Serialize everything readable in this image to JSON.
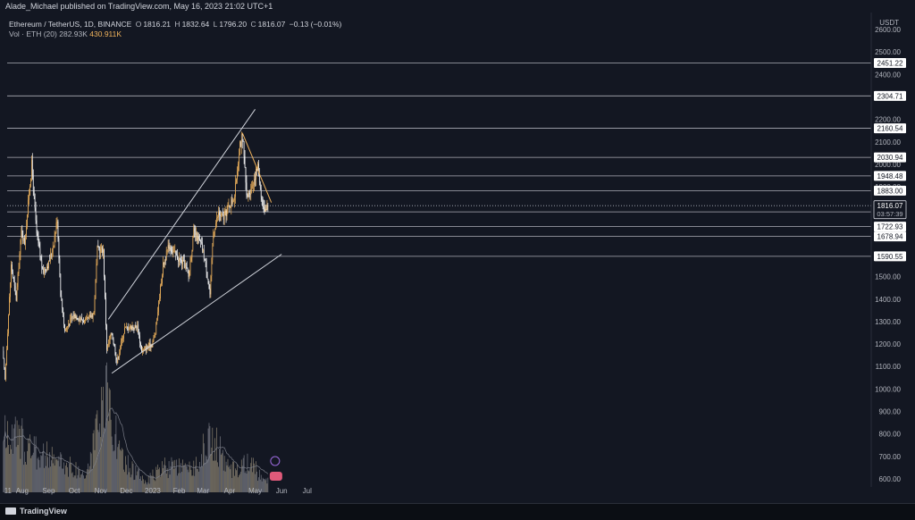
{
  "header": {
    "published": "Alade_Michael published on TradingView.com, May 16, 2023 21:02 UTC+1",
    "currency": "USDT"
  },
  "legend": {
    "symbol": "Ethereum / TetherUS, 1D, BINANCE",
    "open_label": "O",
    "open": "1816.21",
    "high_label": "H",
    "high": "1832.64",
    "low_label": "L",
    "low": "1796.20",
    "close_label": "C",
    "close": "1816.07",
    "change": "−0.13 (−0.01%)",
    "volume_label": "Vol · ETH (20)",
    "volume_ma": "282.93K",
    "volume": "430.911K"
  },
  "footer": {
    "brand": "TradingView"
  },
  "colors": {
    "background": "#131722",
    "up": "#f0b35c",
    "down": "#ffffff",
    "trendline": "#d1d4dc",
    "resistance": "#f0b35c",
    "level_line": "#c7c9d1",
    "price_tag": "#ffffff"
  },
  "chart_data": {
    "type": "candlestick",
    "symbol": "ETHUSDT",
    "interval": "1D",
    "x_tick_labels": [
      "11",
      "Aug",
      "Sep",
      "Oct",
      "Nov",
      "Dec",
      "2023",
      "Feb",
      "Mar",
      "Apr",
      "May",
      "Jun",
      "Jul"
    ],
    "y_tick_labels": [
      "600.00",
      "700.00",
      "800.00",
      "900.00",
      "1000.00",
      "1100.00",
      "1200.00",
      "1300.00",
      "1400.00",
      "1500.00",
      "1600.00",
      "1700.00",
      "1800.00",
      "1900.00",
      "2000.00",
      "2100.00",
      "2200.00",
      "2300.00",
      "2400.00",
      "2500.00",
      "2600.00"
    ],
    "ylim": [
      540,
      2660
    ],
    "scale": "linear",
    "horizontal_levels": [
      2451.22,
      2304.71,
      2160.54,
      2030.94,
      1948.48,
      1883.0,
      1788.41,
      1722.93,
      1678.94,
      1590.55
    ],
    "horizontal_level_labels": [
      "2451.22",
      "2304.71",
      "2160.54",
      "2030.94",
      "1948.48",
      "1883.00",
      "1788.41",
      "1722.93",
      "1678.94",
      "1590.55"
    ],
    "current_price": {
      "value": 1816.07,
      "label": "1816.07",
      "countdown": "03:57:39"
    },
    "price_anchors": [
      {
        "date": "2022-07-10",
        "price": 1170
      },
      {
        "date": "2022-07-13",
        "price": 1040
      },
      {
        "date": "2022-07-20",
        "price": 1550
      },
      {
        "date": "2022-07-26",
        "price": 1400
      },
      {
        "date": "2022-08-01",
        "price": 1700
      },
      {
        "date": "2022-08-05",
        "price": 1650
      },
      {
        "date": "2022-08-13",
        "price": 2000
      },
      {
        "date": "2022-08-19",
        "price": 1690
      },
      {
        "date": "2022-08-26",
        "price": 1520
      },
      {
        "date": "2022-09-02",
        "price": 1560
      },
      {
        "date": "2022-09-08",
        "price": 1650
      },
      {
        "date": "2022-09-12",
        "price": 1760
      },
      {
        "date": "2022-09-16",
        "price": 1430
      },
      {
        "date": "2022-09-21",
        "price": 1260
      },
      {
        "date": "2022-10-01",
        "price": 1330
      },
      {
        "date": "2022-10-15",
        "price": 1300
      },
      {
        "date": "2022-10-25",
        "price": 1340
      },
      {
        "date": "2022-10-29",
        "price": 1620
      },
      {
        "date": "2022-11-05",
        "price": 1620
      },
      {
        "date": "2022-11-09",
        "price": 1180
      },
      {
        "date": "2022-11-15",
        "price": 1250
      },
      {
        "date": "2022-11-21",
        "price": 1120
      },
      {
        "date": "2022-11-30",
        "price": 1270
      },
      {
        "date": "2022-12-15",
        "price": 1280
      },
      {
        "date": "2022-12-20",
        "price": 1170
      },
      {
        "date": "2023-01-01",
        "price": 1200
      },
      {
        "date": "2023-01-05",
        "price": 1250
      },
      {
        "date": "2023-01-14",
        "price": 1550
      },
      {
        "date": "2023-01-21",
        "price": 1640
      },
      {
        "date": "2023-02-01",
        "price": 1580
      },
      {
        "date": "2023-02-09",
        "price": 1550
      },
      {
        "date": "2023-02-13",
        "price": 1500
      },
      {
        "date": "2023-02-19",
        "price": 1700
      },
      {
        "date": "2023-02-28",
        "price": 1640
      },
      {
        "date": "2023-03-05",
        "price": 1560
      },
      {
        "date": "2023-03-10",
        "price": 1420
      },
      {
        "date": "2023-03-14",
        "price": 1700
      },
      {
        "date": "2023-03-20",
        "price": 1780
      },
      {
        "date": "2023-03-26",
        "price": 1760
      },
      {
        "date": "2023-04-01",
        "price": 1810
      },
      {
        "date": "2023-04-08",
        "price": 1860
      },
      {
        "date": "2023-04-14",
        "price": 2100
      },
      {
        "date": "2023-04-18",
        "price": 2090
      },
      {
        "date": "2023-04-22",
        "price": 1850
      },
      {
        "date": "2023-04-28",
        "price": 1900
      },
      {
        "date": "2023-05-05",
        "price": 1990
      },
      {
        "date": "2023-05-10",
        "price": 1840
      },
      {
        "date": "2023-05-12",
        "price": 1800
      },
      {
        "date": "2023-05-16",
        "price": 1816.07
      }
    ],
    "volume_shape": [
      {
        "date": "2022-07-10",
        "volume": 2.6
      },
      {
        "date": "2022-08-01",
        "volume": 2.4
      },
      {
        "date": "2022-08-15",
        "volume": 1.9
      },
      {
        "date": "2022-09-15",
        "volume": 1.4
      },
      {
        "date": "2022-10-15",
        "volume": 0.8
      },
      {
        "date": "2022-11-09",
        "volume": 4.5
      },
      {
        "date": "2022-11-25",
        "volume": 1.5
      },
      {
        "date": "2022-12-25",
        "volume": 0.5
      },
      {
        "date": "2023-01-15",
        "volume": 1.2
      },
      {
        "date": "2023-02-15",
        "volume": 1.0
      },
      {
        "date": "2023-03-11",
        "volume": 2.6
      },
      {
        "date": "2023-04-01",
        "volume": 1.0
      },
      {
        "date": "2023-04-20",
        "volume": 1.4
      },
      {
        "date": "2023-05-16",
        "volume": 0.6
      }
    ],
    "drawings": [
      {
        "name": "channel-upper",
        "from": {
          "date": "2022-11-10",
          "price": 1310
        },
        "to": {
          "date": "2023-05-01",
          "price": 2245
        }
      },
      {
        "name": "channel-lower",
        "from": {
          "date": "2022-11-14",
          "price": 1070
        },
        "to": {
          "date": "2023-06-01",
          "price": 1600
        }
      },
      {
        "name": "descending-resistance",
        "from": {
          "date": "2023-04-16",
          "price": 2140
        },
        "to": {
          "date": "2023-05-20",
          "price": 1830
        }
      }
    ]
  }
}
